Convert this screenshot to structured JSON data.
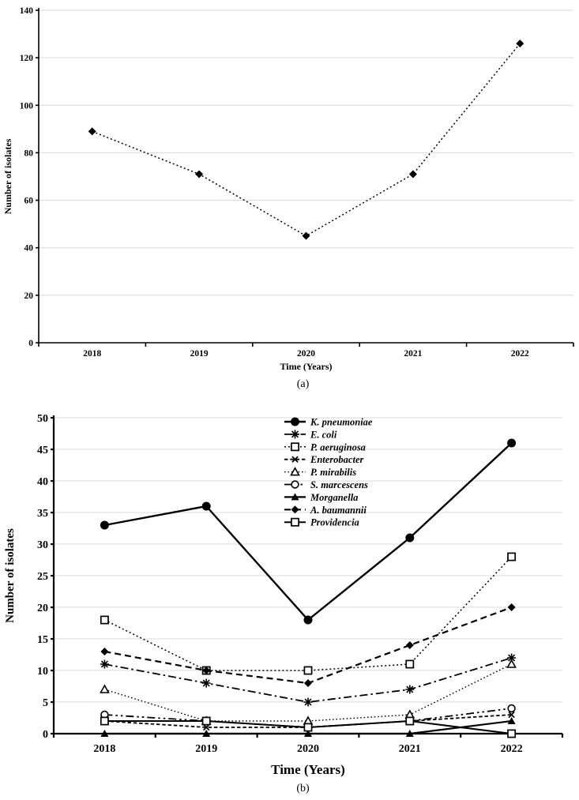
{
  "figure": {
    "background": "#ffffff",
    "text_color": "#000000"
  },
  "chart_data": [
    {
      "type": "line",
      "panel": "a",
      "caption": "(a)",
      "xlabel": "Time (Years)",
      "ylabel": "Number of isolates",
      "categories": [
        "2018",
        "2019",
        "2020",
        "2021",
        "2022"
      ],
      "ylim": [
        0,
        140
      ],
      "yticks": [
        0,
        20,
        40,
        60,
        80,
        100,
        120,
        140
      ],
      "grid": true,
      "grid_color": "#d9d9d9",
      "legend": false,
      "series": [
        {
          "name": "Number of isolates",
          "values": [
            89,
            71,
            45,
            71,
            126
          ],
          "color": "#000000",
          "line": "dotted",
          "marker": "diamond-filled",
          "stroke_width": 1.5,
          "marker_size": 5
        }
      ]
    },
    {
      "type": "line",
      "panel": "b",
      "caption": "(b)",
      "xlabel": "Time (Years)",
      "ylabel": "Number of isolates",
      "categories": [
        "2018",
        "2019",
        "2020",
        "2021",
        "2022"
      ],
      "ylim": [
        0,
        50
      ],
      "yticks": [
        0,
        5,
        10,
        15,
        20,
        25,
        30,
        35,
        40,
        45,
        50
      ],
      "grid": true,
      "grid_color": "#d9d9d9",
      "legend": true,
      "legend_position": "top-center",
      "series": [
        {
          "name": "K. pneumoniae",
          "values": [
            33,
            36,
            18,
            31,
            46
          ],
          "color": "#000000",
          "line": "solid",
          "marker": "circle-filled",
          "stroke_width": 2.4,
          "marker_size": 5.5
        },
        {
          "name": "E. coli",
          "values": [
            11,
            8,
            5,
            7,
            12
          ],
          "color": "#000000",
          "line": "dash-dot",
          "marker": "asterisk",
          "stroke_width": 1.8,
          "marker_size": 5.5
        },
        {
          "name": "P. aeruginosa",
          "values": [
            18,
            10,
            10,
            11,
            28
          ],
          "color": "#000000",
          "line": "dotted",
          "marker": "square-open",
          "stroke_width": 1.5,
          "marker_size": 4.6
        },
        {
          "name": "Enterobacter",
          "values": [
            2,
            1,
            1,
            2,
            3
          ],
          "color": "#000000",
          "line": "short-dash",
          "marker": "x",
          "stroke_width": 1.8,
          "marker_size": 4.6
        },
        {
          "name": "P. mirabilis",
          "values": [
            7,
            2,
            2,
            3,
            11
          ],
          "color": "#000000",
          "line": "dotted-fine",
          "marker": "triangle-open",
          "stroke_width": 1.4,
          "marker_size": 5
        },
        {
          "name": "S. marcescens",
          "values": [
            3,
            2,
            1,
            2,
            4
          ],
          "color": "#000000",
          "line": "dash-dot-dot",
          "marker": "circle-open",
          "stroke_width": 1.8,
          "marker_size": 4.4
        },
        {
          "name": "Morganella",
          "values": [
            0,
            0,
            0,
            0,
            2
          ],
          "color": "#000000",
          "line": "solid",
          "marker": "triangle-filled",
          "stroke_width": 2.2,
          "marker_size": 5
        },
        {
          "name": "A. baumannii",
          "values": [
            13,
            10,
            8,
            14,
            20
          ],
          "color": "#000000",
          "line": "dashed",
          "marker": "diamond-filled",
          "stroke_width": 2.2,
          "marker_size": 5
        },
        {
          "name": "Providencia",
          "values": [
            2,
            2,
            1,
            2,
            0
          ],
          "color": "#000000",
          "line": "solid",
          "marker": "square-open",
          "stroke_width": 2,
          "marker_size": 4.6
        }
      ]
    }
  ]
}
